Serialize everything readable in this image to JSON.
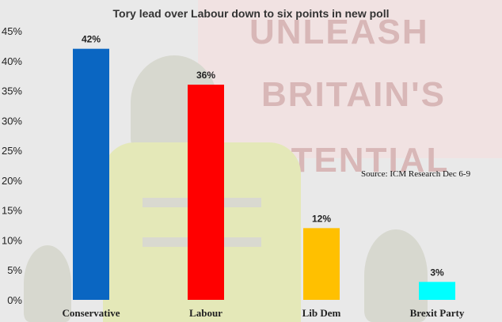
{
  "chart_data": {
    "type": "bar",
    "title": "Tory lead over Labour down to six points in new poll",
    "annotation": "Source: ICM Research Dec 6-9",
    "categories": [
      "Conservative",
      "Labour",
      "Lib Dem",
      "Brexit Party"
    ],
    "values": [
      42,
      36,
      12,
      3
    ],
    "value_labels": [
      "42%",
      "36%",
      "12%",
      "3%"
    ],
    "colors": [
      "#0a66c2",
      "#ff0000",
      "#ffc000",
      "#00ffff"
    ],
    "ylim": [
      0,
      45
    ],
    "yticks": [
      0,
      5,
      10,
      15,
      20,
      25,
      30,
      35,
      40,
      45
    ],
    "ytick_labels": [
      "0%",
      "5%",
      "10%",
      "15%",
      "20%",
      "25%",
      "30%",
      "35%",
      "40%",
      "45%"
    ],
    "xlabel": "",
    "ylabel": "",
    "grid": false,
    "legend": "none"
  },
  "background": {
    "banner_words": [
      "UNLEASH",
      "BRITAIN'S",
      "POTENTIAL"
    ]
  }
}
